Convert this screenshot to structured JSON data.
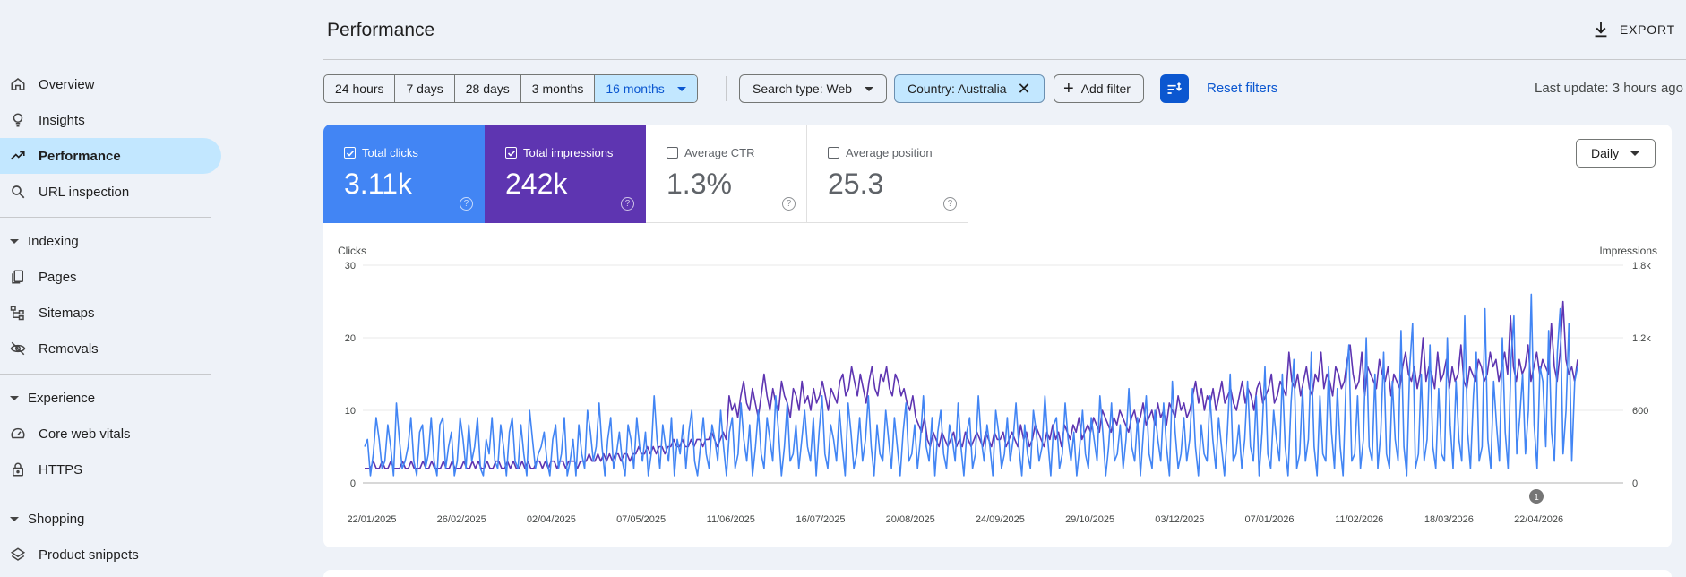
{
  "sidebar": {
    "items": [
      {
        "label": "Overview",
        "icon": "home-icon"
      },
      {
        "label": "Insights",
        "icon": "lightbulb-icon"
      },
      {
        "label": "Performance",
        "icon": "trending-up-icon",
        "active": true
      },
      {
        "label": "URL inspection",
        "icon": "search-icon"
      }
    ],
    "indexing": {
      "label": "Indexing",
      "items": [
        {
          "label": "Pages",
          "icon": "pages-icon"
        },
        {
          "label": "Sitemaps",
          "icon": "sitemap-icon"
        },
        {
          "label": "Removals",
          "icon": "eye-off-icon"
        }
      ]
    },
    "experience": {
      "label": "Experience",
      "items": [
        {
          "label": "Core web vitals",
          "icon": "gauge-icon"
        },
        {
          "label": "HTTPS",
          "icon": "lock-icon"
        }
      ]
    },
    "shopping": {
      "label": "Shopping",
      "items": [
        {
          "label": "Product snippets",
          "icon": "layers-icon"
        }
      ]
    }
  },
  "header": {
    "title": "Performance",
    "export_label": "EXPORT"
  },
  "date_ranges": [
    "24 hours",
    "7 days",
    "28 days",
    "3 months",
    "16 months"
  ],
  "selected_range": "16 months",
  "filters": {
    "search_type": "Search type: Web",
    "country": "Country: Australia",
    "add_filter": "Add filter",
    "reset": "Reset filters"
  },
  "last_update": "Last update: 3 hours ago",
  "metrics": [
    {
      "label": "Total clicks",
      "value": "3.11k",
      "checked": true,
      "color": "#4285f4"
    },
    {
      "label": "Total impressions",
      "value": "242k",
      "checked": true,
      "color": "#5e35b1"
    },
    {
      "label": "Average CTR",
      "value": "1.3%",
      "checked": false
    },
    {
      "label": "Average position",
      "value": "25.3",
      "checked": false
    }
  ],
  "granularity": "Daily",
  "annotation_marker": "1",
  "chart_data": {
    "type": "line",
    "left_axis": {
      "label": "Clicks",
      "ticks": [
        "0",
        "10",
        "20",
        "30"
      ],
      "ylim": [
        0,
        30
      ]
    },
    "right_axis": {
      "label": "Impressions",
      "ticks": [
        "0",
        "600",
        "1.2k",
        "1.8k"
      ],
      "ylim": [
        0,
        1800
      ]
    },
    "x_ticks": [
      "22/01/2025",
      "26/02/2025",
      "02/04/2025",
      "07/05/2025",
      "11/06/2025",
      "16/07/2025",
      "20/08/2025",
      "24/09/2025",
      "29/10/2025",
      "03/12/2025",
      "07/01/2026",
      "11/02/2026",
      "18/03/2026",
      "22/04/2026"
    ],
    "grid": true,
    "series": [
      {
        "name": "Total clicks",
        "axis": "left",
        "color": "#4285f4",
        "values": [
          5,
          6,
          1,
          4,
          9,
          6,
          2,
          3,
          8,
          5,
          1,
          11,
          6,
          2,
          3,
          5,
          9,
          3,
          1,
          7,
          8,
          2,
          4,
          9,
          3,
          1,
          8,
          9,
          2,
          5,
          7,
          1,
          3,
          9,
          6,
          2,
          8,
          3,
          5,
          9,
          2,
          1,
          6,
          4,
          9,
          3,
          2,
          8,
          5,
          1,
          7,
          9,
          3,
          2,
          8,
          4,
          1,
          10,
          6,
          2,
          4,
          5,
          7,
          3,
          1,
          6,
          8,
          2,
          4,
          9,
          1,
          3,
          6,
          1,
          8,
          4,
          2,
          10,
          7,
          3,
          5,
          11,
          5,
          1,
          6,
          9,
          2,
          4,
          7,
          3,
          1,
          8,
          6,
          2,
          9,
          5,
          3,
          7,
          1,
          4,
          12,
          6,
          2,
          8,
          5,
          3,
          9,
          1,
          6,
          4,
          8,
          2,
          7,
          10,
          3,
          1,
          5,
          9,
          4,
          2,
          8,
          6,
          3,
          10,
          5,
          1,
          7,
          9,
          2,
          4,
          11,
          6,
          3,
          8,
          1,
          5,
          10,
          4,
          2,
          9,
          6,
          3,
          12,
          7,
          1,
          5,
          11,
          3,
          4,
          8,
          2,
          6,
          10,
          5,
          3,
          9,
          1,
          7,
          12,
          4,
          2,
          8,
          6,
          3,
          10,
          5,
          1,
          11,
          7,
          2,
          4,
          9,
          3,
          6,
          12,
          5,
          1,
          8,
          4,
          3,
          10,
          6,
          2,
          9,
          5,
          1,
          7,
          11,
          3,
          4,
          8,
          2,
          6,
          12,
          5,
          3,
          9,
          1,
          7,
          10,
          4,
          2,
          8,
          6,
          3,
          11,
          5,
          1,
          7,
          9,
          2,
          4,
          12,
          6,
          3,
          8,
          5,
          1,
          10,
          7,
          2,
          4,
          9,
          3,
          6,
          11,
          5,
          1,
          8,
          4,
          2,
          10,
          7,
          3,
          5,
          12,
          6,
          1,
          8,
          9,
          2,
          4,
          11,
          6,
          3,
          7,
          1,
          5,
          10,
          4,
          2,
          9,
          6,
          3,
          12,
          7,
          1,
          5,
          11,
          3,
          4,
          8,
          2,
          6,
          13,
          5,
          3,
          9,
          1,
          7,
          12,
          4,
          2,
          10,
          6,
          3,
          11,
          5,
          1,
          14,
          7,
          2,
          4,
          9,
          3,
          6,
          13,
          5,
          1,
          8,
          4,
          3,
          12,
          6,
          2,
          9,
          5,
          1,
          7,
          15,
          3,
          4,
          8,
          2,
          6,
          14,
          5,
          3,
          12,
          1,
          7,
          16,
          4,
          2,
          10,
          6,
          3,
          15,
          5,
          1,
          11,
          17,
          2,
          4,
          13,
          3,
          6,
          18,
          5,
          1,
          12,
          4,
          3,
          16,
          7,
          2,
          13,
          5,
          1,
          14,
          19,
          3,
          4,
          12,
          2,
          6,
          20,
          5,
          3,
          15,
          2,
          7,
          18,
          4,
          2,
          14,
          6,
          3,
          21,
          5,
          1,
          16,
          22,
          2,
          4,
          15,
          3,
          6,
          19,
          5,
          2,
          13,
          4,
          3,
          20,
          8,
          2,
          14,
          6,
          3,
          23,
          7,
          2,
          12,
          18,
          3,
          5,
          24,
          6,
          2,
          14,
          8,
          3,
          20,
          7,
          2,
          17,
          23,
          4,
          9,
          15,
          4,
          10,
          26,
          8,
          2,
          16,
          14,
          5,
          21,
          7,
          3,
          18,
          24,
          4,
          10,
          22,
          3,
          14,
          16
        ]
      },
      {
        "name": "Total impressions",
        "axis": "left-scaled",
        "color": "#5e35b1",
        "values": [
          2,
          2,
          2,
          3,
          2,
          2,
          3,
          2,
          2,
          3,
          2,
          2,
          2,
          3,
          2,
          2,
          3,
          2,
          2,
          2,
          3,
          2,
          2,
          3,
          2,
          2,
          2,
          3,
          2,
          2,
          3,
          2,
          2,
          2,
          3,
          2,
          2,
          3,
          2,
          3,
          2,
          2,
          3,
          2,
          2,
          3,
          3,
          2,
          2,
          3,
          2,
          3,
          2,
          2,
          3,
          2,
          3,
          2,
          2,
          3,
          3,
          2,
          3,
          2,
          3,
          3,
          2,
          3,
          3,
          2,
          3,
          3,
          3,
          2,
          3,
          3,
          3,
          4,
          3,
          3,
          4,
          3,
          4,
          3,
          4,
          3,
          4,
          4,
          3,
          4,
          4,
          3,
          4,
          4,
          5,
          4,
          4,
          5,
          4,
          5,
          4,
          5,
          5,
          4,
          5,
          5,
          6,
          5,
          5,
          6,
          5,
          5,
          6,
          5,
          6,
          6,
          5,
          6,
          6,
          7,
          6,
          5,
          6,
          7,
          6,
          12,
          10,
          11,
          9,
          12,
          14,
          11,
          10,
          13,
          11,
          9,
          12,
          15,
          12,
          10,
          13,
          11,
          10,
          14,
          12,
          11,
          9,
          13,
          12,
          10,
          14,
          11,
          12,
          10,
          13,
          11,
          12,
          14,
          12,
          10,
          13,
          12,
          11,
          14,
          15,
          12,
          13,
          16,
          14,
          12,
          15,
          13,
          11,
          14,
          16,
          13,
          12,
          15,
          14,
          16,
          13,
          12,
          15,
          14,
          12,
          13,
          11,
          10,
          12,
          9,
          8,
          7,
          9,
          6,
          5,
          7,
          6,
          5,
          7,
          6,
          5,
          6,
          7,
          5,
          6,
          5,
          7,
          6,
          5,
          6,
          7,
          6,
          5,
          7,
          6,
          5,
          7,
          6,
          6,
          7,
          5,
          6,
          7,
          6,
          5,
          8,
          6,
          7,
          5,
          6,
          8,
          7,
          6,
          5,
          7,
          6,
          8,
          6,
          7,
          5,
          8,
          7,
          6,
          8,
          7,
          9,
          6,
          7,
          8,
          7,
          9,
          8,
          7,
          10,
          9,
          8,
          7,
          9,
          8,
          10,
          9,
          8,
          7,
          9,
          10,
          8,
          9,
          11,
          8,
          9,
          10,
          8,
          11,
          9,
          10,
          8,
          11,
          10,
          9,
          12,
          10,
          11,
          9,
          10,
          12,
          14,
          11,
          13,
          10,
          12,
          11,
          13,
          10,
          12,
          14,
          11,
          12,
          13,
          11,
          10,
          12,
          14,
          11,
          13,
          12,
          10,
          13,
          14,
          11,
          12,
          13,
          15,
          11,
          12,
          14,
          13,
          12,
          18,
          14,
          13,
          15,
          12,
          14,
          16,
          13,
          12,
          15,
          14,
          18,
          13,
          15,
          14,
          12,
          16,
          15,
          13,
          14,
          17,
          19,
          15,
          13,
          14,
          18,
          12,
          16,
          15,
          14,
          13,
          17,
          15,
          14,
          16,
          12,
          15,
          14,
          13,
          16,
          18,
          15,
          14,
          16,
          13,
          15,
          20,
          14,
          16,
          15,
          13,
          18,
          14,
          15,
          17,
          13,
          16,
          14,
          15,
          19,
          14,
          13,
          16,
          15,
          14,
          17,
          16,
          14,
          15,
          18,
          16,
          17,
          14,
          16,
          18,
          15,
          23,
          16,
          14,
          17,
          15,
          16,
          19,
          14,
          16,
          18,
          15,
          17,
          16,
          15,
          22,
          16,
          14,
          18,
          25,
          17,
          15,
          16,
          14,
          17
        ]
      }
    ]
  }
}
